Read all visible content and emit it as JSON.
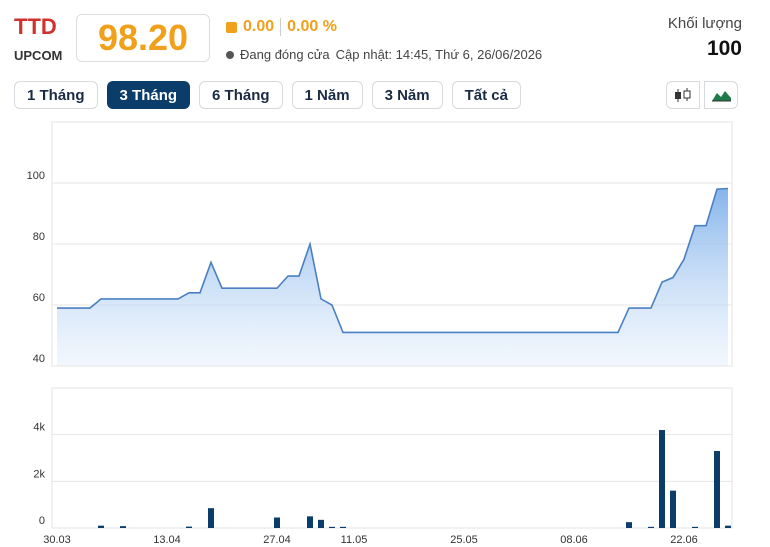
{
  "header": {
    "symbol": "TTD",
    "exchange": "UPCOM",
    "price": "98.20",
    "change": "0.00",
    "change_pct": "0.00 %",
    "status": "Đang đóng cửa",
    "updated": "Cập nhật: 14:45, Thứ 6, 26/06/2026",
    "volume_label": "Khối lượng",
    "volume": "100"
  },
  "tabs": [
    "1 Tháng",
    "3 Tháng",
    "6 Tháng",
    "1 Năm",
    "3 Năm",
    "Tất cả"
  ],
  "active_tab": 1,
  "chart_data": [
    {
      "type": "area",
      "color": "#4a80c2",
      "values": [
        59,
        59,
        59,
        59,
        62,
        62,
        62,
        62,
        62,
        62,
        62,
        62,
        64,
        64,
        74,
        65.5,
        65.5,
        65.5,
        65.5,
        65.5,
        65.5,
        69.5,
        69.5,
        80,
        62,
        60,
        51,
        51,
        51,
        51,
        51,
        51,
        51,
        51,
        51,
        51,
        51,
        51,
        51,
        51,
        51,
        51,
        51,
        51,
        51,
        51,
        51,
        51,
        51,
        51,
        51,
        51,
        59,
        59,
        59,
        67.5,
        69,
        75,
        86,
        86,
        98,
        98.2
      ],
      "ylim": [
        40,
        120
      ],
      "yticks": [
        40,
        60,
        80,
        100
      ],
      "grid": true
    },
    {
      "type": "bar",
      "color": "#0b3d6b",
      "categories": [
        "30.03",
        null,
        null,
        null,
        null,
        null,
        null,
        null,
        null,
        null,
        "13.04",
        null,
        null,
        null,
        null,
        null,
        null,
        null,
        null,
        null,
        "27.04",
        null,
        null,
        null,
        null,
        null,
        null,
        "11.05",
        null,
        null,
        null,
        null,
        null,
        null,
        null,
        null,
        null,
        "25.05",
        null,
        null,
        null,
        null,
        null,
        null,
        null,
        null,
        null,
        "08.06",
        null,
        null,
        null,
        null,
        null,
        null,
        null,
        null,
        null,
        "22.06",
        null,
        null,
        null,
        null
      ],
      "values": [
        0,
        0,
        0,
        0,
        100,
        0,
        80,
        0,
        0,
        0,
        0,
        0,
        60,
        0,
        850,
        0,
        0,
        0,
        0,
        0,
        450,
        0,
        0,
        500,
        350,
        50,
        50,
        0,
        0,
        0,
        0,
        0,
        0,
        0,
        0,
        0,
        0,
        0,
        0,
        0,
        0,
        0,
        0,
        0,
        0,
        0,
        0,
        0,
        0,
        0,
        0,
        0,
        250,
        0,
        50,
        4200,
        1600,
        0,
        50,
        0,
        3300,
        100
      ],
      "ylim": [
        0,
        6000
      ],
      "yticks": [
        {
          "value": 0,
          "label": "0"
        },
        {
          "value": 2000,
          "label": "2k"
        },
        {
          "value": 4000,
          "label": "4k"
        }
      ],
      "grid": true
    }
  ]
}
